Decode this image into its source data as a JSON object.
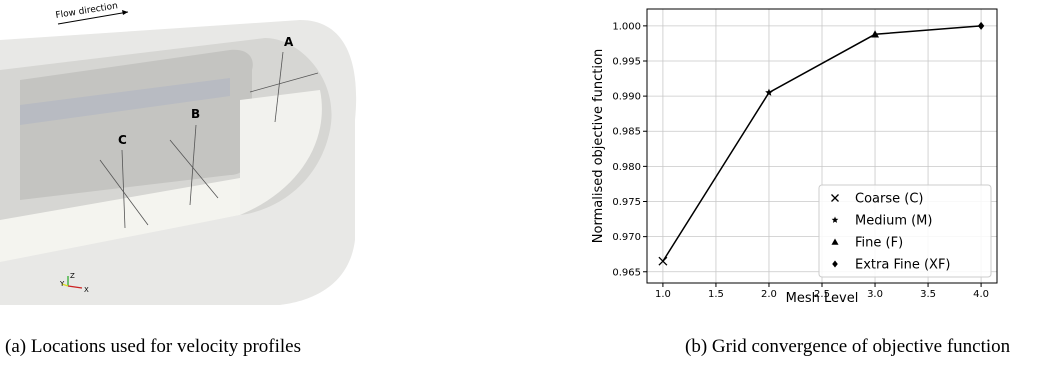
{
  "panel_a": {
    "caption": "(a) Locations used for velocity profiles",
    "flow_label": "Flow direction",
    "probe_labels": [
      "A",
      "B",
      "C"
    ],
    "axis_labels": [
      "Y",
      "Z",
      "X"
    ]
  },
  "panel_b": {
    "caption": "(b) Grid convergence of objective function"
  },
  "chart_data": {
    "type": "line",
    "xlabel": "Mesh Level",
    "ylabel": "Normalised objective function",
    "series": [
      {
        "name": "Coarse (C)",
        "marker": "x",
        "color": "#000000",
        "x": [
          1
        ],
        "values": [
          0.9665
        ]
      },
      {
        "name": "Medium (M)",
        "marker": "star",
        "color": "#000000",
        "x": [
          2
        ],
        "values": [
          0.9905
        ]
      },
      {
        "name": "Fine (F)",
        "marker": "triangle",
        "color": "#000000",
        "x": [
          3
        ],
        "values": [
          0.9988
        ]
      },
      {
        "name": "Extra Fine (XF)",
        "marker": "diamond",
        "color": "#000000",
        "x": [
          4
        ],
        "values": [
          1.0
        ]
      }
    ],
    "line_color": "#000000",
    "xlim": [
      0.85,
      4.15
    ],
    "xticks": [
      {
        "value": 1,
        "label": "1.0"
      },
      {
        "value": 1.5,
        "label": "1.5"
      },
      {
        "value": 2,
        "label": "2.0"
      },
      {
        "value": 2.5,
        "label": "2.5"
      },
      {
        "value": 3,
        "label": "3.0"
      },
      {
        "value": 3.5,
        "label": "3.5"
      },
      {
        "value": 4,
        "label": "4.0"
      }
    ],
    "ylim": [
      0.9634,
      1.0024
    ],
    "yticks": [
      0.965,
      {
        "value": 0.97,
        "label": "0.970"
      },
      0.975,
      {
        "value": 0.98,
        "label": "0.980"
      },
      0.985,
      {
        "value": 0.99,
        "label": "0.990"
      },
      0.995,
      {
        "value": 1.0,
        "label": "1.000"
      }
    ],
    "grid": true,
    "legend": "lower right"
  }
}
